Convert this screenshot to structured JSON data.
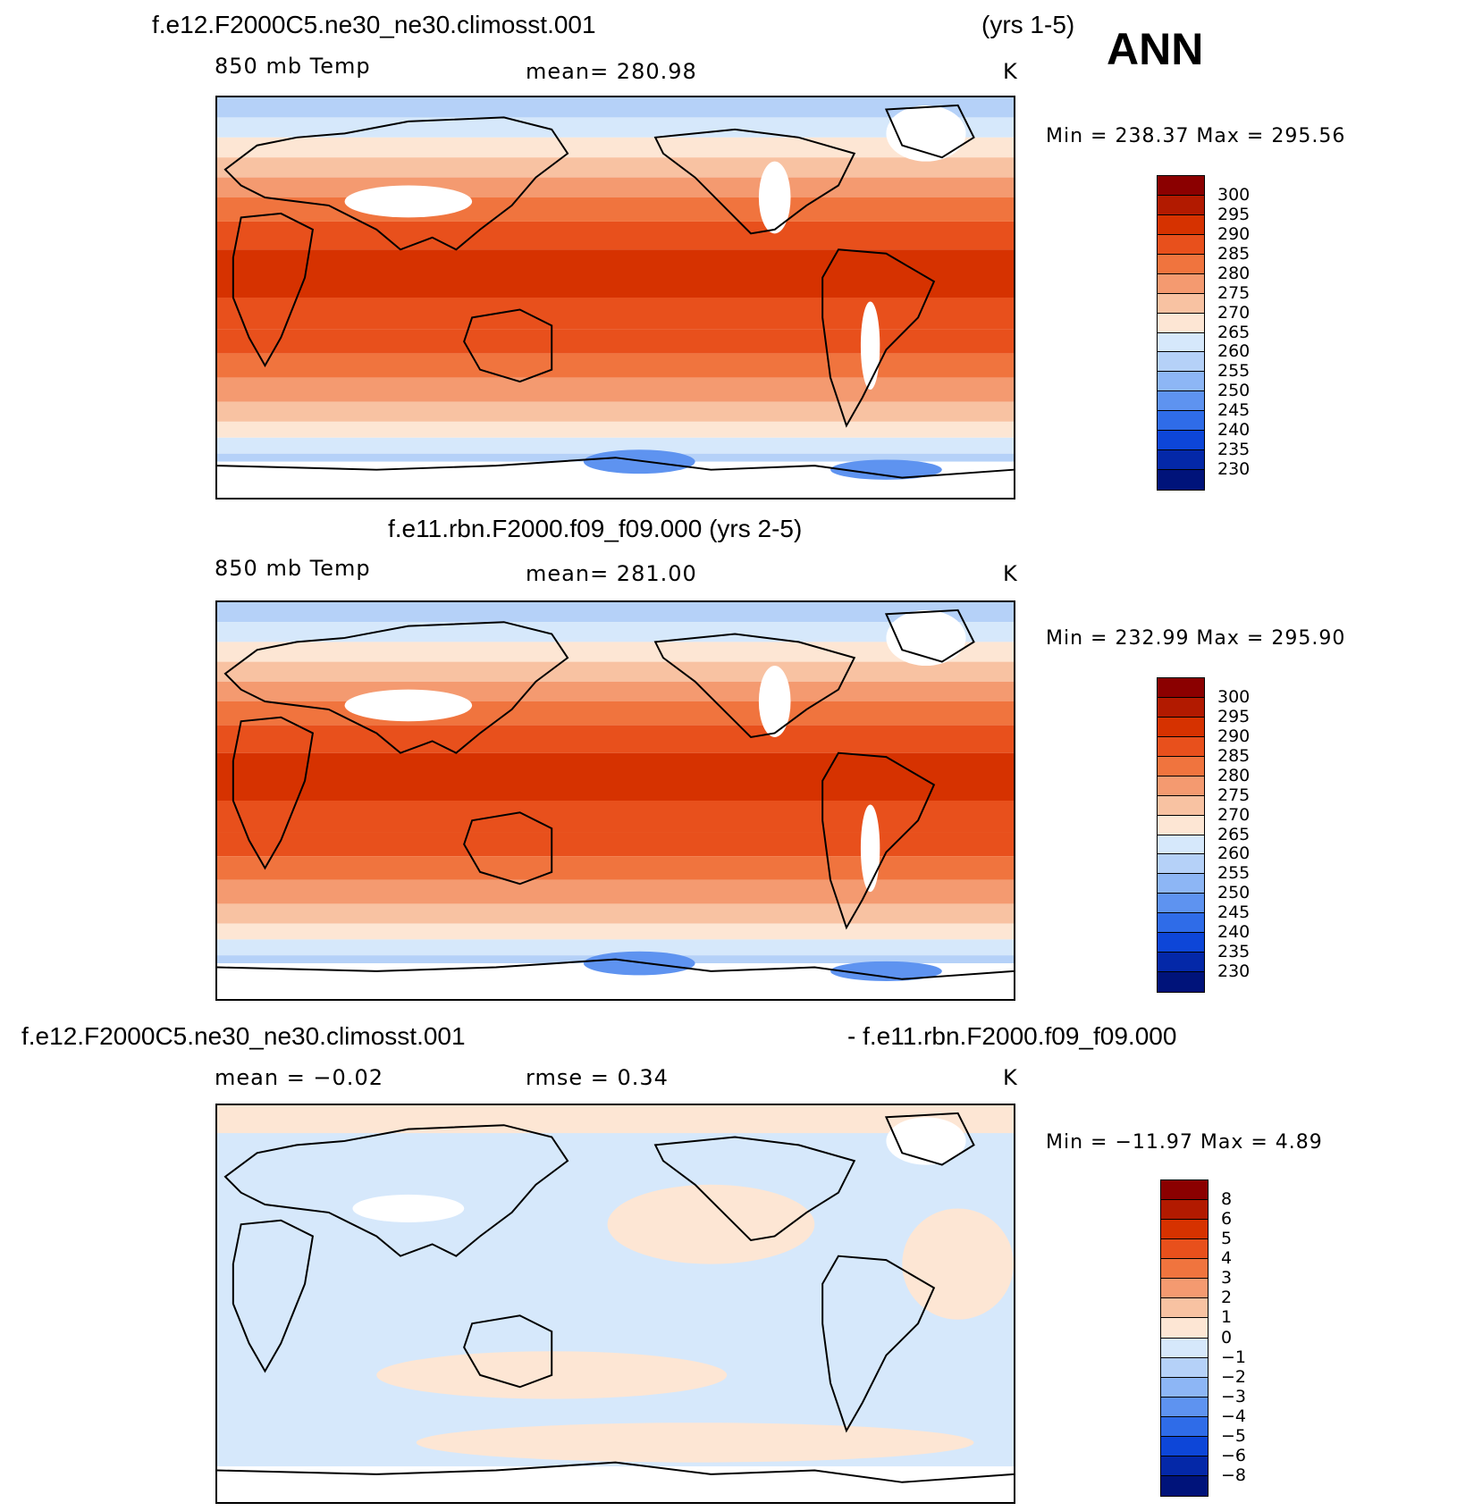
{
  "header": {
    "case_top": "f.e12.F2000C5.ne30_ne30.climosst.001",
    "years_top": "(yrs 1-5)",
    "season": "ANN",
    "case_mid": "f.e11.rbn.F2000.f09_f09.000 (yrs 2-5)",
    "case_diff_a": "f.e12.F2000C5.ne30_ne30.climosst.001",
    "case_diff_b": "- f.e11.rbn.F2000.f09_f09.000"
  },
  "panels": [
    {
      "field": "850 mb Temp",
      "stat": "mean=  280.98",
      "units": "K",
      "minmax": "Min  =  238.37  Max  =  295.56",
      "kind": "abs"
    },
    {
      "field": "850 mb Temp",
      "stat": "mean=  281.00",
      "units": "K",
      "minmax": "Min  =  232.99  Max  =  295.90",
      "kind": "abs"
    },
    {
      "field": "",
      "stat": "mean  =    −0.02",
      "stat2": "rmse  =     0.34",
      "units": "K",
      "minmax": "Min  =  −11.97  Max  =     4.89",
      "kind": "diff"
    }
  ],
  "colorbars": {
    "abs": {
      "labels": [
        "300",
        "295",
        "290",
        "285",
        "280",
        "275",
        "270",
        "265",
        "260",
        "255",
        "250",
        "245",
        "240",
        "235",
        "230"
      ],
      "colors": [
        "#8b0000",
        "#b21a00",
        "#d63200",
        "#e8501c",
        "#f0743e",
        "#f49a70",
        "#f8c2a2",
        "#fde6d4",
        "#d6e8fb",
        "#b5d1f8",
        "#8db6f5",
        "#5e93f0",
        "#2f6ce8",
        "#0d46d8",
        "#0428a8",
        "#00137a"
      ]
    },
    "diff": {
      "labels": [
        "8",
        "6",
        "5",
        "4",
        "3",
        "2",
        "1",
        "0",
        "−1",
        "−2",
        "−3",
        "−4",
        "−5",
        "−6",
        "−8"
      ],
      "colors": [
        "#8b0000",
        "#b21a00",
        "#d63200",
        "#e8501c",
        "#f0743e",
        "#f49a70",
        "#f8c2a2",
        "#fde6d4",
        "#d6e8fb",
        "#b5d1f8",
        "#8db6f5",
        "#5e93f0",
        "#2f6ce8",
        "#0d46d8",
        "#0428a8",
        "#00137a"
      ]
    }
  }
}
